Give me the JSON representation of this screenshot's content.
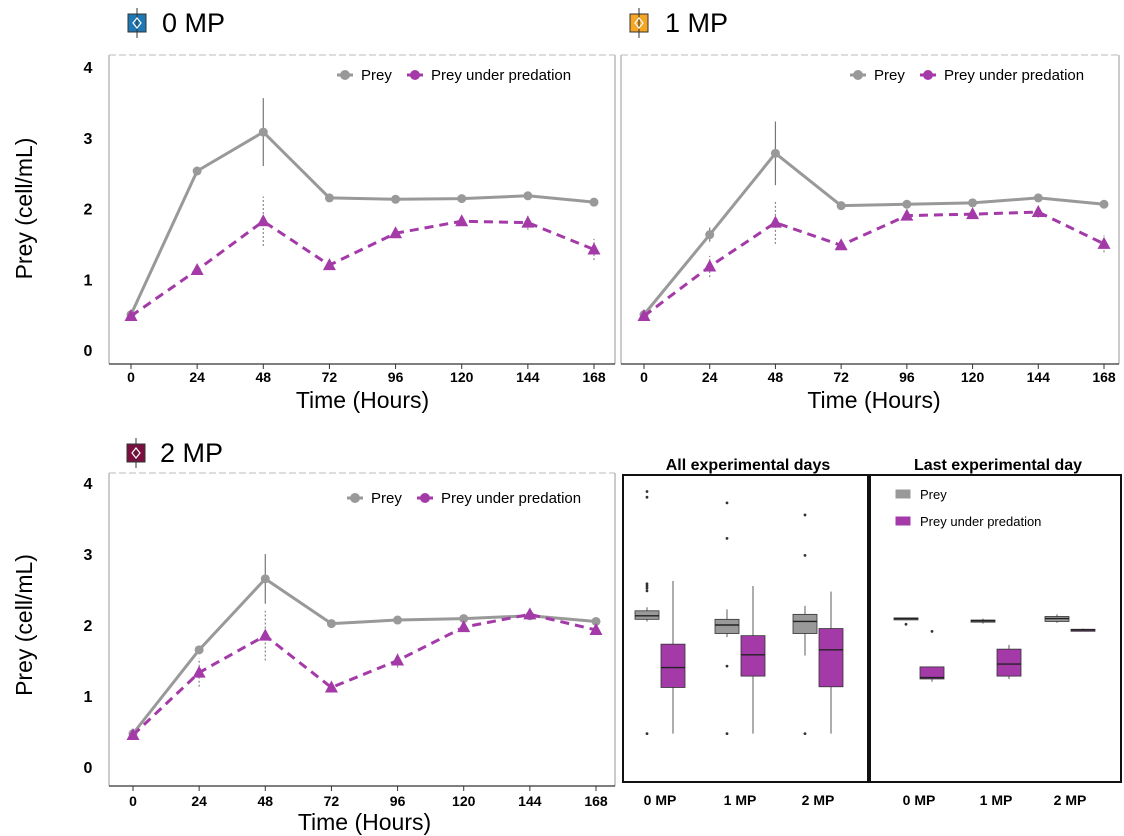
{
  "colors": {
    "prey": "#999999",
    "predation": "#a33aa8",
    "mp0": "#1f77b4",
    "mp1": "#f5a623",
    "mp2": "#7a1040"
  },
  "chart_data": [
    {
      "type": "line",
      "title": "0 MP",
      "xlabel": "Time (Hours)",
      "ylabel": "Prey (cell/mL)",
      "x": [
        0,
        24,
        48,
        72,
        96,
        120,
        144,
        168
      ],
      "xticks": [
        "0",
        "24",
        "48",
        "72",
        "96",
        "120",
        "144",
        "168"
      ],
      "ylim": [
        0,
        4
      ],
      "yticks": [
        "0",
        "1",
        "2",
        "3",
        "4"
      ],
      "legend": "top-right",
      "series": [
        {
          "name": "Prey",
          "values": [
            0.5,
            2.53,
            3.08,
            2.15,
            2.13,
            2.14,
            2.18,
            2.09
          ],
          "err": [
            0.03,
            0.05,
            0.48,
            0.03,
            0.03,
            0.03,
            0.04,
            0.03
          ]
        },
        {
          "name": "Prey under predation",
          "values": [
            0.48,
            1.13,
            1.82,
            1.2,
            1.65,
            1.82,
            1.8,
            1.42
          ],
          "err": [
            0.03,
            0.05,
            0.35,
            0.04,
            0.05,
            0.06,
            0.1,
            0.15
          ]
        }
      ]
    },
    {
      "type": "line",
      "title": "1 MP",
      "xlabel": "Time (Hours)",
      "ylabel": "",
      "x": [
        0,
        24,
        48,
        72,
        96,
        120,
        144,
        168
      ],
      "xticks": [
        "0",
        "24",
        "48",
        "72",
        "96",
        "120",
        "144",
        "168"
      ],
      "ylim": [
        0,
        4
      ],
      "yticks": [],
      "legend": "top-right",
      "series": [
        {
          "name": "Prey",
          "values": [
            0.5,
            1.63,
            2.78,
            2.04,
            2.06,
            2.08,
            2.15,
            2.06
          ],
          "err": [
            0.03,
            0.1,
            0.45,
            0.03,
            0.03,
            0.03,
            0.04,
            0.03
          ]
        },
        {
          "name": "Prey under predation",
          "values": [
            0.48,
            1.18,
            1.8,
            1.48,
            1.9,
            1.92,
            1.95,
            1.5
          ],
          "err": [
            0.03,
            0.15,
            0.3,
            0.04,
            0.04,
            0.05,
            0.08,
            0.12
          ]
        }
      ]
    },
    {
      "type": "line",
      "title": "2 MP",
      "xlabel": "Time (Hours)",
      "ylabel": "Prey (cell/mL)",
      "x": [
        0,
        24,
        48,
        72,
        96,
        120,
        144,
        168
      ],
      "xticks": [
        "0",
        "24",
        "48",
        "72",
        "96",
        "120",
        "144",
        "168"
      ],
      "ylim": [
        0,
        4
      ],
      "yticks": [
        "0",
        "1",
        "2",
        "3",
        "4"
      ],
      "legend": "top-right",
      "series": [
        {
          "name": "Prey",
          "values": [
            0.47,
            1.65,
            2.65,
            2.02,
            2.07,
            2.09,
            2.13,
            2.05
          ],
          "err": [
            0.03,
            0.05,
            0.35,
            0.03,
            0.03,
            0.03,
            0.04,
            0.03
          ]
        },
        {
          "name": "Prey under predation",
          "values": [
            0.45,
            1.33,
            1.85,
            1.12,
            1.5,
            1.97,
            2.15,
            1.93
          ],
          "err": [
            0.03,
            0.2,
            0.35,
            0.04,
            0.1,
            0.05,
            0.05,
            0.06
          ]
        }
      ]
    },
    {
      "type": "box",
      "title": "All experimental days",
      "categories": [
        "0 MP",
        "1 MP",
        "2 MP"
      ],
      "ylim": [
        0,
        4
      ],
      "legend": "",
      "series": [
        {
          "name": "Prey",
          "boxes": [
            {
              "min": 2.05,
              "q1": 2.08,
              "median": 2.13,
              "q3": 2.2,
              "max": 2.25,
              "outliers": [
                0.47,
                2.48,
                2.52,
                2.55,
                2.58,
                3.8,
                3.88
              ]
            },
            {
              "min": 1.83,
              "q1": 1.88,
              "median": 2.0,
              "q3": 2.08,
              "max": 2.22,
              "outliers": [
                0.47,
                1.42,
                3.22,
                3.72
              ]
            },
            {
              "min": 1.57,
              "q1": 1.88,
              "median": 2.05,
              "q3": 2.15,
              "max": 2.27,
              "outliers": [
                0.47,
                2.98,
                3.55
              ]
            }
          ]
        },
        {
          "name": "Prey under predation",
          "boxes": [
            {
              "min": 0.47,
              "q1": 1.12,
              "median": 1.4,
              "q3": 1.73,
              "max": 2.62,
              "outliers": []
            },
            {
              "min": 0.47,
              "q1": 1.28,
              "median": 1.58,
              "q3": 1.85,
              "max": 2.55,
              "outliers": []
            },
            {
              "min": 0.47,
              "q1": 1.13,
              "median": 1.65,
              "q3": 1.95,
              "max": 2.47,
              "outliers": []
            }
          ]
        }
      ]
    },
    {
      "type": "box",
      "title": "Last experimental day",
      "categories": [
        "0 MP",
        "1 MP",
        "2 MP"
      ],
      "ylim": [
        0,
        4
      ],
      "legend": "top-left",
      "series": [
        {
          "name": "Prey",
          "boxes": [
            {
              "min": 2.07,
              "q1": 2.08,
              "median": 2.09,
              "q3": 2.1,
              "max": 2.1,
              "outliers": [
                2.01
              ]
            },
            {
              "min": 2.02,
              "q1": 2.04,
              "median": 2.06,
              "q3": 2.07,
              "max": 2.09,
              "outliers": []
            },
            {
              "min": 2.03,
              "q1": 2.05,
              "median": 2.09,
              "q3": 2.12,
              "max": 2.15,
              "outliers": []
            }
          ]
        },
        {
          "name": "Prey under predation",
          "boxes": [
            {
              "min": 1.2,
              "q1": 1.24,
              "median": 1.26,
              "q3": 1.41,
              "max": 1.41,
              "outliers": [
                1.91
              ]
            },
            {
              "min": 1.24,
              "q1": 1.28,
              "median": 1.45,
              "q3": 1.66,
              "max": 1.72,
              "outliers": []
            },
            {
              "min": 1.91,
              "q1": 1.92,
              "median": 1.93,
              "q3": 1.94,
              "max": 1.95,
              "outliers": []
            }
          ]
        }
      ]
    }
  ]
}
